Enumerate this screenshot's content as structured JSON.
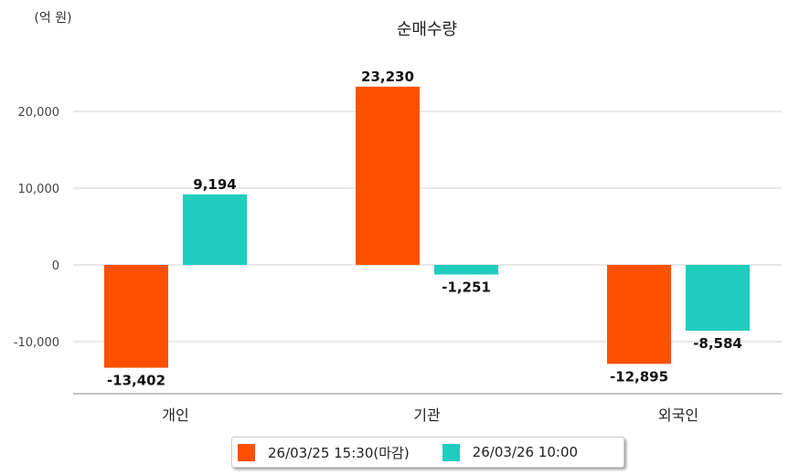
{
  "chart_data": {
    "type": "bar",
    "title": "순매수량",
    "unit_label": "(억 원)",
    "categories": [
      "개인",
      "기관",
      "외국인"
    ],
    "series": [
      {
        "name": "26/03/25 15:30(마감)",
        "color": "#ff5000",
        "values": [
          -13402,
          23230,
          -12895
        ],
        "labels": [
          "-13,402",
          "23,230",
          "-12,895"
        ]
      },
      {
        "name": "26/03/26 10:00",
        "color": "#1ecdbe",
        "values": [
          9194,
          -1251,
          -8584
        ],
        "labels": [
          "9,194",
          "-1,251",
          "-8,584"
        ]
      }
    ],
    "yticks": [
      20000,
      10000,
      0,
      -10000
    ],
    "ytick_labels": [
      "20,000",
      "10,000",
      "0",
      "-10,000"
    ],
    "ylim": [
      -16800,
      29000
    ],
    "grid": true,
    "legend_position": "bottom"
  }
}
